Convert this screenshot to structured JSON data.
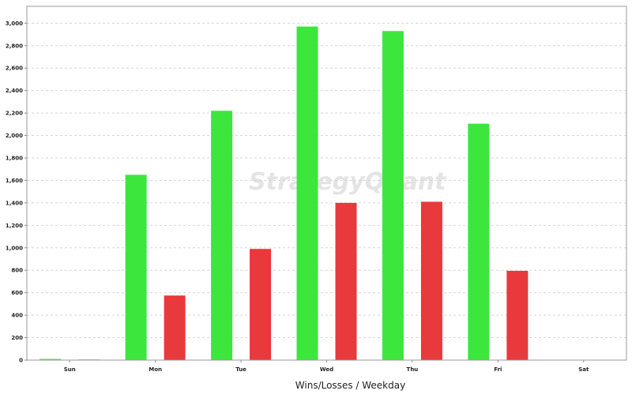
{
  "chart_data": {
    "type": "bar",
    "xlabel": "Wins/Losses / Weekday",
    "ylabel": "",
    "watermark": "StrategyQuant",
    "categories": [
      "Sun",
      "Mon",
      "Tue",
      "Wed",
      "Thu",
      "Fri",
      "Sat"
    ],
    "series": [
      {
        "name": "Wins",
        "color": "#3de63d",
        "values": [
          10,
          1650,
          2220,
          2970,
          2930,
          2105,
          0
        ]
      },
      {
        "name": "Losses",
        "color": "#e8393c",
        "values": [
          5,
          575,
          990,
          1400,
          1410,
          795,
          0
        ]
      }
    ],
    "ylim": [
      0,
      3150
    ],
    "yticks": [
      0,
      200,
      400,
      600,
      800,
      1000,
      1200,
      1400,
      1600,
      1800,
      2000,
      2200,
      2400,
      2600,
      2800,
      3000
    ],
    "ytick_labels": [
      "0",
      "200",
      "400",
      "600",
      "800",
      "1,000",
      "1,200",
      "1,400",
      "1,600",
      "1,800",
      "2,000",
      "2,200",
      "2,400",
      "2,600",
      "2,800",
      "3,000"
    ],
    "grid": true,
    "legend": "none"
  }
}
